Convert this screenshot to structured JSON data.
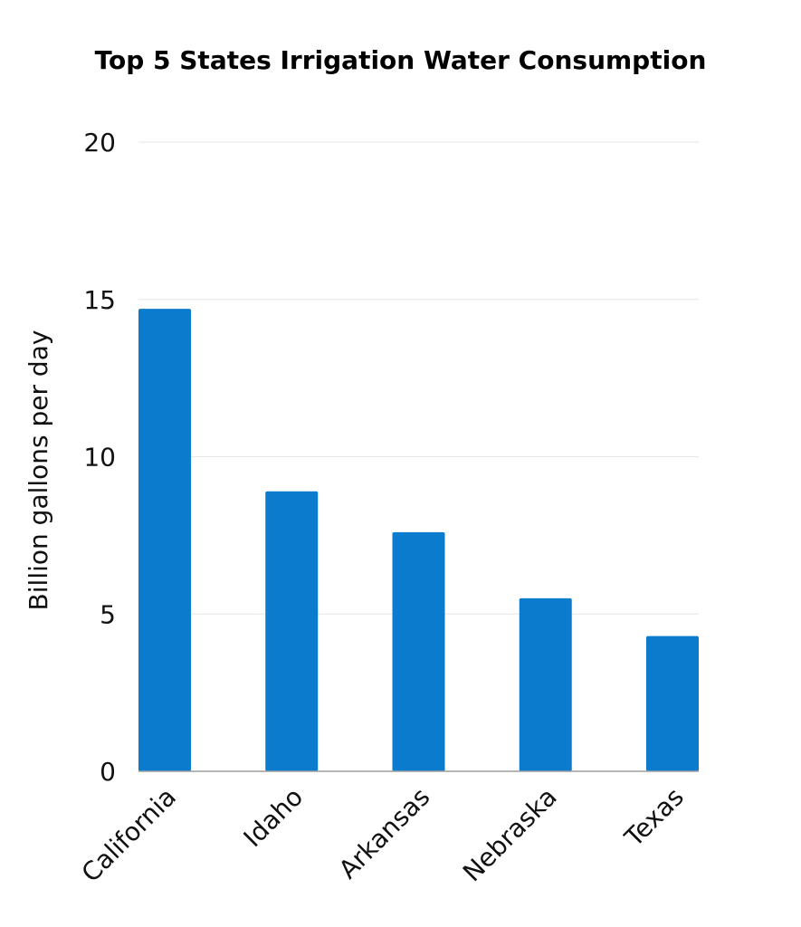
{
  "chart_data": {
    "type": "bar",
    "title": "Top 5  States Irrigation Water Consumption",
    "xlabel": "",
    "ylabel": "Billion gallons per day",
    "categories": [
      "California",
      "Idaho",
      "Arkansas",
      "Nebraska",
      "Texas"
    ],
    "values": [
      14.7,
      8.9,
      7.6,
      5.5,
      4.3
    ],
    "ylim": [
      0,
      20
    ],
    "yticks": [
      "0",
      "5",
      "10",
      "15",
      "20"
    ],
    "grid": true,
    "legend": "none",
    "bar_color": "#0a7bcd",
    "grid_color": "#e6e6e6",
    "axis_color": "#9e9e9e"
  }
}
